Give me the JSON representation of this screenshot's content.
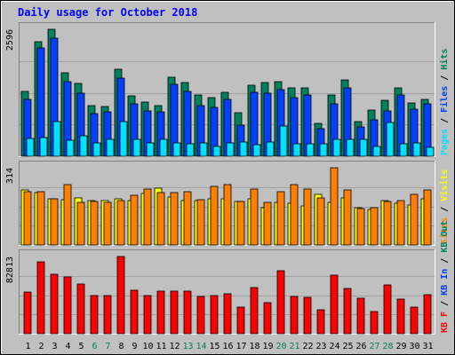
{
  "title": "Daily usage for October 2018",
  "colors": {
    "background": "#C0C0C0",
    "plot_bg": "#C0C0C0",
    "title": "#0000FF",
    "hits": "#00805C",
    "files": "#0040FF",
    "pages": "#00E0FF",
    "visits": "#FFFF00",
    "sites": "#FF8000",
    "kbytes": "#FF0000",
    "weekend": "#00805C",
    "weekday": "#000000"
  },
  "chart_data": [
    {
      "type": "bar",
      "title": "Daily usage for October 2018",
      "panel": "hits-files-pages",
      "ylabel": [
        "Pages",
        "Files",
        "Hits"
      ],
      "ytick": "2596",
      "ylim": [
        0,
        2596
      ],
      "categories": [
        "1",
        "2",
        "3",
        "4",
        "5",
        "6",
        "7",
        "8",
        "9",
        "10",
        "11",
        "12",
        "13",
        "14",
        "15",
        "16",
        "17",
        "18",
        "19",
        "20",
        "21",
        "22",
        "23",
        "24",
        "25",
        "26",
        "27",
        "28",
        "29",
        "30",
        "31"
      ],
      "series": [
        {
          "name": "Hits",
          "values": [
            1330,
            2350,
            2596,
            1710,
            1490,
            1040,
            1020,
            1770,
            1240,
            1100,
            1030,
            1620,
            1500,
            1250,
            1200,
            1300,
            890,
            1460,
            1510,
            1530,
            1390,
            1390,
            670,
            1250,
            1560,
            700,
            950,
            1140,
            1390,
            1090,
            1160
          ]
        },
        {
          "name": "Files",
          "values": [
            1170,
            2220,
            2420,
            1530,
            1290,
            880,
            900,
            1590,
            1080,
            920,
            900,
            1470,
            1330,
            1040,
            1000,
            1170,
            640,
            1300,
            1290,
            1370,
            1200,
            1250,
            560,
            1080,
            1400,
            590,
            750,
            930,
            1250,
            960,
            1080
          ]
        },
        {
          "name": "Pages",
          "values": [
            360,
            390,
            710,
            320,
            420,
            270,
            340,
            700,
            340,
            270,
            350,
            270,
            260,
            280,
            200,
            270,
            290,
            240,
            290,
            620,
            260,
            260,
            250,
            350,
            340,
            350,
            200,
            690,
            260,
            270,
            180
          ]
        }
      ]
    },
    {
      "type": "bar",
      "panel": "visits-sites",
      "ylabel": [
        "Sites",
        "Visits"
      ],
      "ytick": "314",
      "ylim": [
        0,
        314
      ],
      "categories": [
        "1",
        "2",
        "3",
        "4",
        "5",
        "6",
        "7",
        "8",
        "9",
        "10",
        "11",
        "12",
        "13",
        "14",
        "15",
        "16",
        "17",
        "18",
        "19",
        "20",
        "21",
        "22",
        "23",
        "24",
        "25",
        "26",
        "27",
        "28",
        "29",
        "30",
        "31"
      ],
      "series": [
        {
          "name": "Visits",
          "values": [
            224,
            214,
            187,
            184,
            193,
            182,
            181,
            187,
            181,
            210,
            230,
            194,
            179,
            180,
            188,
            186,
            176,
            186,
            152,
            174,
            170,
            160,
            204,
            175,
            191,
            151,
            145,
            182,
            168,
            164,
            188
          ]
        },
        {
          "name": "Sites",
          "values": [
            218,
            216,
            186,
            247,
            174,
            178,
            173,
            182,
            202,
            229,
            213,
            214,
            218,
            183,
            237,
            244,
            176,
            226,
            172,
            216,
            244,
            226,
            193,
            314,
            224,
            147,
            153,
            176,
            181,
            206,
            224
          ]
        }
      ]
    },
    {
      "type": "bar",
      "panel": "kbytes",
      "ylabel": [
        "KB F",
        "KB In",
        "KB Out"
      ],
      "ytick": "82813",
      "ylim": [
        0,
        82813
      ],
      "categories": [
        "1",
        "2",
        "3",
        "4",
        "5",
        "6",
        "7",
        "8",
        "9",
        "10",
        "11",
        "12",
        "13",
        "14",
        "15",
        "16",
        "17",
        "18",
        "19",
        "20",
        "21",
        "22",
        "23",
        "24",
        "25",
        "26",
        "27",
        "28",
        "29",
        "30",
        "31"
      ],
      "series": [
        {
          "name": "KB F",
          "values": [
            44700,
            77100,
            64200,
            61000,
            53700,
            41000,
            41300,
            82813,
            46600,
            41200,
            46100,
            45800,
            45700,
            40000,
            41400,
            42800,
            28100,
            49700,
            33400,
            67600,
            40400,
            39300,
            26100,
            63000,
            48500,
            38500,
            23600,
            52300,
            37000,
            28600,
            41600
          ]
        }
      ]
    }
  ],
  "day_labels": [
    {
      "label": "1",
      "weekend": false
    },
    {
      "label": "2",
      "weekend": false
    },
    {
      "label": "3",
      "weekend": false
    },
    {
      "label": "4",
      "weekend": false
    },
    {
      "label": "5",
      "weekend": false
    },
    {
      "label": "6",
      "weekend": true
    },
    {
      "label": "7",
      "weekend": true
    },
    {
      "label": "8",
      "weekend": false
    },
    {
      "label": "9",
      "weekend": false
    },
    {
      "label": "10",
      "weekend": false
    },
    {
      "label": "11",
      "weekend": false
    },
    {
      "label": "12",
      "weekend": false
    },
    {
      "label": "13",
      "weekend": true
    },
    {
      "label": "14",
      "weekend": true
    },
    {
      "label": "15",
      "weekend": false
    },
    {
      "label": "16",
      "weekend": false
    },
    {
      "label": "17",
      "weekend": false
    },
    {
      "label": "18",
      "weekend": false
    },
    {
      "label": "19",
      "weekend": false
    },
    {
      "label": "20",
      "weekend": true
    },
    {
      "label": "21",
      "weekend": true
    },
    {
      "label": "22",
      "weekend": false
    },
    {
      "label": "23",
      "weekend": false
    },
    {
      "label": "24",
      "weekend": false
    },
    {
      "label": "25",
      "weekend": false
    },
    {
      "label": "26",
      "weekend": false
    },
    {
      "label": "27",
      "weekend": true
    },
    {
      "label": "28",
      "weekend": true
    },
    {
      "label": "29",
      "weekend": false
    },
    {
      "label": "30",
      "weekend": false
    },
    {
      "label": "31",
      "weekend": false
    }
  ]
}
